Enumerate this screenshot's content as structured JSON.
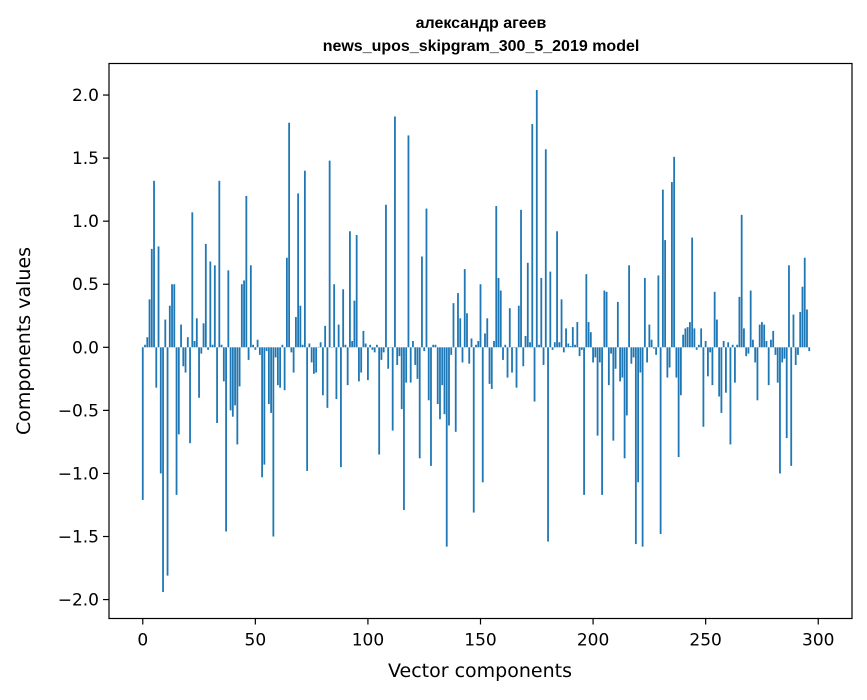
{
  "chart_data": {
    "type": "bar",
    "title": "александр агеев",
    "subtitle": "news_upos_skipgram_300_5_2019 model",
    "xlabel": "Vector components",
    "ylabel": "Components values",
    "xlim": [
      -15,
      315
    ],
    "ylim": [
      -2.15,
      2.25
    ],
    "xticks": [
      0,
      50,
      100,
      150,
      200,
      250,
      300
    ],
    "yticks": [
      -2.0,
      -1.5,
      -1.0,
      -0.5,
      0.0,
      0.5,
      1.0,
      1.5,
      2.0
    ],
    "ytick_labels": [
      "−2.0",
      "−1.5",
      "−1.0",
      "−0.5",
      "0.0",
      "0.5",
      "1.0",
      "1.5",
      "2.0"
    ],
    "grid": false,
    "bar_color": "#1f77b4",
    "values": [
      -1.21,
      0.02,
      0.08,
      0.38,
      0.78,
      1.32,
      -0.32,
      0.8,
      -1.0,
      -1.94,
      0.22,
      -1.81,
      0.33,
      0.5,
      0.5,
      -1.17,
      -0.69,
      0.18,
      -0.15,
      -0.2,
      0.08,
      -0.76,
      1.07,
      0.05,
      0.23,
      -0.4,
      -0.05,
      0.19,
      0.82,
      -0.02,
      0.68,
      0.02,
      0.65,
      -0.6,
      1.32,
      0.02,
      -0.27,
      -1.46,
      0.61,
      -0.5,
      -0.55,
      -0.46,
      -0.77,
      -0.31,
      0.5,
      0.53,
      1.2,
      -0.1,
      0.65,
      0.02,
      -0.02,
      0.06,
      -0.06,
      -1.03,
      -0.93,
      -0.03,
      -0.45,
      -0.52,
      -1.5,
      -0.08,
      -0.3,
      -0.32,
      0.02,
      -0.34,
      0.71,
      1.78,
      -0.04,
      -0.2,
      0.24,
      1.22,
      0.33,
      0.02,
      1.4,
      -0.98,
      0.03,
      -0.12,
      -0.21,
      -0.2,
      0.0,
      0.04,
      -0.38,
      0.17,
      -0.48,
      1.48,
      0.0,
      0.5,
      -0.41,
      0.18,
      -0.95,
      0.46,
      0.02,
      -0.3,
      0.92,
      0.05,
      0.37,
      0.89,
      -0.27,
      -0.2,
      0.13,
      0.03,
      -0.26,
      0.02,
      -0.02,
      -0.04,
      0.02,
      -0.85,
      -0.1,
      -0.04,
      1.13,
      -0.17,
      0.0,
      -0.66,
      1.83,
      -0.14,
      -0.07,
      -0.49,
      -1.29,
      -0.28,
      1.68,
      -0.28,
      0.05,
      -0.14,
      -0.25,
      -0.88,
      0.72,
      -0.03,
      1.1,
      -0.42,
      -0.94,
      0.02,
      0.02,
      -0.45,
      -0.57,
      -0.3,
      -0.53,
      -1.58,
      -0.62,
      -0.06,
      0.35,
      -0.67,
      0.43,
      0.23,
      -0.12,
      0.62,
      0.27,
      -0.13,
      0.07,
      -1.31,
      0.02,
      0.05,
      0.5,
      -1.07,
      0.11,
      0.23,
      -0.29,
      -0.33,
      0.05,
      1.12,
      0.55,
      0.45,
      -0.1,
      0.02,
      -0.24,
      0.31,
      -0.2,
      0.0,
      -0.32,
      0.33,
      1.09,
      -0.15,
      0.09,
      0.67,
      0.04,
      1.77,
      -0.43,
      2.04,
      0.02,
      0.55,
      -0.14,
      1.57,
      -1.54,
      0.6,
      -0.02,
      0.04,
      0.92,
      0.04,
      0.38,
      -0.04,
      0.15,
      0.03,
      0.01,
      0.16,
      0.02,
      0.2,
      -0.07,
      -0.02,
      -1.17,
      0.58,
      0.2,
      0.12,
      -0.12,
      -0.08,
      -0.7,
      -0.12,
      -1.17,
      0.45,
      0.44,
      -0.3,
      -0.05,
      -0.74,
      -0.17,
      0.36,
      -0.27,
      -0.24,
      -0.88,
      -0.54,
      0.65,
      -0.13,
      -0.08,
      -1.56,
      -1.07,
      -0.2,
      -1.58,
      0.55,
      -0.12,
      0.18,
      0.06,
      -0.01,
      -0.06,
      0.57,
      -1.48,
      1.25,
      0.85,
      -0.24,
      -0.16,
      1.31,
      1.51,
      -0.24,
      -0.87,
      -0.38,
      0.1,
      0.15,
      0.16,
      0.2,
      0.87,
      0.15,
      -0.02,
      0.02,
      0.15,
      -0.63,
      0.05,
      -0.23,
      -0.04,
      -0.3,
      0.44,
      0.22,
      -0.39,
      -0.52,
      0.05,
      -0.36,
      0.04,
      -0.77,
      0.02,
      -0.28,
      0.02,
      0.4,
      1.05,
      0.15,
      -0.07,
      -0.05,
      0.45,
      0.06,
      -0.12,
      -0.42,
      0.18,
      0.2,
      0.18,
      0.05,
      -0.3,
      0.06,
      0.13,
      -0.06,
      -0.28,
      -1.0,
      -0.12,
      -0.09,
      -0.72,
      0.65,
      -0.94,
      0.26,
      -0.14,
      -0.06,
      0.28,
      0.48,
      0.71,
      0.3,
      -0.03
    ]
  }
}
